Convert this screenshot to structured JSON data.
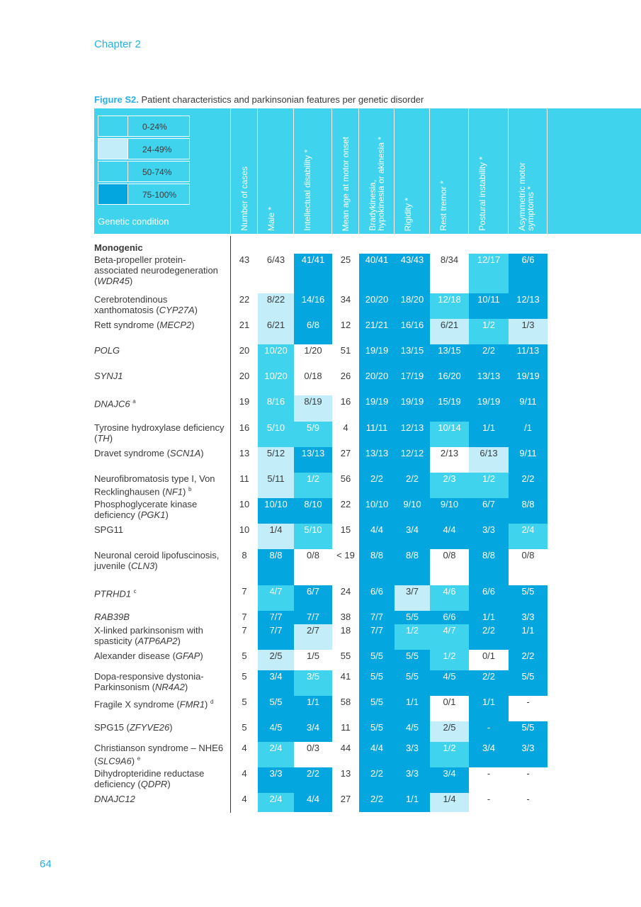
{
  "chapter": "Chapter 2",
  "page_number": "64",
  "figure": {
    "label": "Figure S2.",
    "caption": " Patient characteristics and parkinsonian features per genetic disorder"
  },
  "legend": [
    {
      "label": "0-24%",
      "color": "#3fd3ee"
    },
    {
      "label": "24-49%",
      "color": "#c3eef9"
    },
    {
      "label": "50-74%",
      "color": "#3fd3ee"
    },
    {
      "label": "75-100%",
      "color": "#04a6df"
    }
  ],
  "genetic_condition_label": "Genetic condition",
  "columns": [
    "Number of cases",
    "Male *",
    "Intellectual disability *",
    "Mean age at motor onset",
    "Bradykinesia,|hypokinesia or akinesia *",
    "Rigidity *",
    "Rest tremor *",
    "Postural instability *",
    "Asymmetric motor|symptoms *"
  ],
  "section": "Monogenic",
  "rows": [
    {
      "name": [
        [
          "Beta-propeller protein-associated neurodegeneration (",
          0
        ],
        [
          "WDR45",
          1
        ],
        [
          ")",
          0
        ]
      ],
      "cells": [
        [
          "43",
          0
        ],
        [
          "6/43",
          0
        ],
        [
          "41/41",
          3
        ],
        [
          "25",
          0
        ],
        [
          "40/41",
          3
        ],
        [
          "43/43",
          3
        ],
        [
          "8/34",
          0
        ],
        [
          "12/17",
          2
        ],
        [
          "6/6",
          3
        ]
      ]
    },
    {
      "name": [
        [
          "Cerebrotendinous xanthomatosis (",
          0
        ],
        [
          "CYP27A",
          1
        ],
        [
          ")",
          0
        ]
      ],
      "cells": [
        [
          "22",
          0
        ],
        [
          "8/22",
          1
        ],
        [
          "14/16",
          3
        ],
        [
          "34",
          0
        ],
        [
          "20/20",
          3
        ],
        [
          "18/20",
          3
        ],
        [
          "12/18",
          2
        ],
        [
          "10/11",
          3
        ],
        [
          "12/13",
          3
        ]
      ]
    },
    {
      "name": [
        [
          "Rett syndrome (",
          0
        ],
        [
          "MECP2",
          1
        ],
        [
          ")",
          0
        ]
      ],
      "cells": [
        [
          "21",
          0
        ],
        [
          "6/21",
          1
        ],
        [
          "6/8",
          3
        ],
        [
          "12",
          0
        ],
        [
          "21/21",
          3
        ],
        [
          "16/16",
          3
        ],
        [
          "6/21",
          1
        ],
        [
          "1/2",
          2
        ],
        [
          "1/3",
          1
        ]
      ]
    },
    {
      "name": [
        [
          "POLG",
          1
        ]
      ],
      "cells": [
        [
          "20",
          0
        ],
        [
          "10/20",
          2
        ],
        [
          "1/20",
          0
        ],
        [
          "51",
          0
        ],
        [
          "19/19",
          3
        ],
        [
          "13/15",
          3
        ],
        [
          "13/15",
          3
        ],
        [
          "2/2",
          3
        ],
        [
          "11/13",
          3
        ]
      ]
    },
    {
      "name": [
        [
          "SYNJ1",
          1
        ]
      ],
      "cells": [
        [
          "20",
          0
        ],
        [
          "10/20",
          2
        ],
        [
          "0/18",
          0
        ],
        [
          "26",
          0
        ],
        [
          "20/20",
          3
        ],
        [
          "17/19",
          3
        ],
        [
          "16/20",
          3
        ],
        [
          "13/13",
          3
        ],
        [
          "19/19",
          3
        ]
      ]
    },
    {
      "name": [
        [
          "DNAJC6",
          1
        ],
        [
          " ",
          0
        ],
        [
          "a",
          2
        ]
      ],
      "cells": [
        [
          "19",
          0
        ],
        [
          "8/16",
          2
        ],
        [
          "8/19",
          1
        ],
        [
          "16",
          0
        ],
        [
          "19/19",
          3
        ],
        [
          "19/19",
          3
        ],
        [
          "15/19",
          3
        ],
        [
          "19/19",
          3
        ],
        [
          "9/11",
          3
        ]
      ]
    },
    {
      "name": [
        [
          "Tyrosine hydroxylase deficiency (",
          0
        ],
        [
          "TH",
          1
        ],
        [
          ")",
          0
        ]
      ],
      "cells": [
        [
          "16",
          0
        ],
        [
          "5/10",
          2
        ],
        [
          "5/9",
          2
        ],
        [
          "4",
          0
        ],
        [
          "11/11",
          3
        ],
        [
          "12/13",
          3
        ],
        [
          "10/14",
          2
        ],
        [
          "1/1",
          3
        ],
        [
          "/1",
          3
        ]
      ]
    },
    {
      "name": [
        [
          "Dravet syndrome (",
          0
        ],
        [
          "SCN1A",
          1
        ],
        [
          ")",
          0
        ]
      ],
      "cells": [
        [
          "13",
          0
        ],
        [
          "5/12",
          1
        ],
        [
          "13/13",
          3
        ],
        [
          "27",
          0
        ],
        [
          "13/13",
          3
        ],
        [
          "12/12",
          3
        ],
        [
          "2/13",
          0
        ],
        [
          "6/13",
          1
        ],
        [
          "9/11",
          3
        ]
      ]
    },
    {
      "name": [
        [
          "Neurofibromatosis type I, Von Recklinghausen (",
          0
        ],
        [
          "NF1",
          1
        ],
        [
          ") ",
          0
        ],
        [
          "b",
          2
        ]
      ],
      "cells": [
        [
          "11",
          0
        ],
        [
          "5/11",
          1
        ],
        [
          "1/2",
          2
        ],
        [
          "56",
          0
        ],
        [
          "2/2",
          3
        ],
        [
          "2/2",
          3
        ],
        [
          "2/3",
          2
        ],
        [
          "1/2",
          2
        ],
        [
          "2/2",
          3
        ]
      ]
    },
    {
      "name": [
        [
          "Phosphoglycerate kinase deficiency (",
          0
        ],
        [
          "PGK1",
          1
        ],
        [
          ")",
          0
        ]
      ],
      "cells": [
        [
          "10",
          0
        ],
        [
          "10/10",
          3
        ],
        [
          "8/10",
          3
        ],
        [
          "22",
          0
        ],
        [
          "10/10",
          3
        ],
        [
          "9/10",
          3
        ],
        [
          "9/10",
          3
        ],
        [
          "6/7",
          3
        ],
        [
          "8/8",
          3
        ]
      ]
    },
    {
      "name": [
        [
          "SPG11",
          0
        ]
      ],
      "cells": [
        [
          "10",
          0
        ],
        [
          "1/4",
          1
        ],
        [
          "5/10",
          2
        ],
        [
          "15",
          0
        ],
        [
          "4/4",
          3
        ],
        [
          "3/4",
          3
        ],
        [
          "4/4",
          3
        ],
        [
          "3/3",
          3
        ],
        [
          "2/4",
          2
        ]
      ]
    },
    {
      "name": [
        [
          "Neuronal ceroid lipofuscinosis, juvenile (",
          0
        ],
        [
          "CLN3",
          1
        ],
        [
          ")",
          0
        ]
      ],
      "cells": [
        [
          "8",
          0
        ],
        [
          "8/8",
          3
        ],
        [
          "0/8",
          0
        ],
        [
          "< 19",
          0
        ],
        [
          "8/8",
          3
        ],
        [
          "8/8",
          3
        ],
        [
          "0/8",
          0
        ],
        [
          "8/8",
          3
        ],
        [
          "0/8",
          0
        ]
      ]
    },
    {
      "name": [
        [
          "PTRHD1",
          1
        ],
        [
          " ",
          0
        ],
        [
          "c",
          2
        ]
      ],
      "cells": [
        [
          "7",
          0
        ],
        [
          "4/7",
          2
        ],
        [
          "6/7",
          3
        ],
        [
          "24",
          0
        ],
        [
          "6/6",
          3
        ],
        [
          "3/7",
          1
        ],
        [
          "4/6",
          2
        ],
        [
          "6/6",
          3
        ],
        [
          "5/5",
          3
        ]
      ]
    },
    {
      "name": [
        [
          "RAB39B",
          1
        ]
      ],
      "cells": [
        [
          "7",
          0
        ],
        [
          "7/7",
          3
        ],
        [
          "7/7",
          3
        ],
        [
          "38",
          0
        ],
        [
          "7/7",
          3
        ],
        [
          "5/5",
          3
        ],
        [
          "6/6",
          3
        ],
        [
          "1/1",
          3
        ],
        [
          "3/3",
          3
        ]
      ]
    },
    {
      "name": [
        [
          "X-linked parkinsonism with spasticity (",
          0
        ],
        [
          "ATP6AP2",
          1
        ],
        [
          ")",
          0
        ]
      ],
      "cells": [
        [
          "7",
          0
        ],
        [
          "7/7",
          3
        ],
        [
          "2/7",
          1
        ],
        [
          "18",
          0
        ],
        [
          "7/7",
          3
        ],
        [
          "1/2",
          2
        ],
        [
          "4/7",
          2
        ],
        [
          "2/2",
          3
        ],
        [
          "1/1",
          3
        ]
      ]
    },
    {
      "name": [
        [
          "Alexander disease (",
          0
        ],
        [
          "GFAP",
          1
        ],
        [
          ")",
          0
        ]
      ],
      "cells": [
        [
          "5",
          0
        ],
        [
          "2/5",
          1
        ],
        [
          "1/5",
          0
        ],
        [
          "55",
          0
        ],
        [
          "5/5",
          3
        ],
        [
          "5/5",
          3
        ],
        [
          "1/2",
          2
        ],
        [
          "0/1",
          0
        ],
        [
          "2/2",
          3
        ]
      ]
    },
    {
      "name": [
        [
          "Dopa-responsive dystonia-Parkinsonism (",
          0
        ],
        [
          "NR4A2",
          1
        ],
        [
          ")",
          0
        ]
      ],
      "cells": [
        [
          "5",
          0
        ],
        [
          "3/4",
          3
        ],
        [
          "3/5",
          2
        ],
        [
          "41",
          0
        ],
        [
          "5/5",
          3
        ],
        [
          "5/5",
          3
        ],
        [
          "4/5",
          3
        ],
        [
          "2/2",
          3
        ],
        [
          "5/5",
          3
        ]
      ]
    },
    {
      "name": [
        [
          "Fragile X syndrome (",
          0
        ],
        [
          "FMR1",
          1
        ],
        [
          ") ",
          0
        ],
        [
          "d",
          2
        ]
      ],
      "cells": [
        [
          "5",
          0
        ],
        [
          "5/5",
          3
        ],
        [
          "1/1",
          3
        ],
        [
          "58",
          0
        ],
        [
          "5/5",
          3
        ],
        [
          "1/1",
          3
        ],
        [
          "0/1",
          0
        ],
        [
          "1/1",
          3
        ],
        [
          "-",
          0
        ]
      ]
    },
    {
      "name": [
        [
          "SPG15 (",
          0
        ],
        [
          "ZFYVE26",
          1
        ],
        [
          ")",
          0
        ]
      ],
      "cells": [
        [
          "5",
          0
        ],
        [
          "4/5",
          3
        ],
        [
          "3/4",
          3
        ],
        [
          "11",
          0
        ],
        [
          "5/5",
          3
        ],
        [
          "4/5",
          3
        ],
        [
          "2/5",
          1
        ],
        [
          "-",
          3
        ],
        [
          "5/5",
          3
        ]
      ]
    },
    {
      "name": [
        [
          "Christianson syndrome – NHE6 (",
          0
        ],
        [
          "SLC9A6",
          1
        ],
        [
          ") ",
          0
        ],
        [
          "e",
          2
        ]
      ],
      "cells": [
        [
          "4",
          0
        ],
        [
          "2/4",
          2
        ],
        [
          "0/3",
          0
        ],
        [
          "44",
          0
        ],
        [
          "4/4",
          3
        ],
        [
          "3/3",
          3
        ],
        [
          "1/2",
          2
        ],
        [
          "3/4",
          3
        ],
        [
          "3/3",
          3
        ]
      ]
    },
    {
      "name": [
        [
          "Dihydropteridine reductase deficiency (",
          0
        ],
        [
          "QDPR",
          1
        ],
        [
          ")",
          0
        ]
      ],
      "cells": [
        [
          "4",
          0
        ],
        [
          "3/3",
          3
        ],
        [
          "2/2",
          3
        ],
        [
          "13",
          0
        ],
        [
          "2/2",
          3
        ],
        [
          "3/3",
          3
        ],
        [
          "3/4",
          3
        ],
        [
          "-",
          0
        ],
        [
          "-",
          0
        ]
      ]
    },
    {
      "name": [
        [
          "DNAJC12",
          1
        ]
      ],
      "cells": [
        [
          "4",
          0
        ],
        [
          "2/4",
          2
        ],
        [
          "4/4",
          3
        ],
        [
          "27",
          0
        ],
        [
          "2/2",
          3
        ],
        [
          "1/1",
          3
        ],
        [
          "1/4",
          1
        ],
        [
          "-",
          0
        ],
        [
          "-",
          0
        ]
      ]
    }
  ]
}
